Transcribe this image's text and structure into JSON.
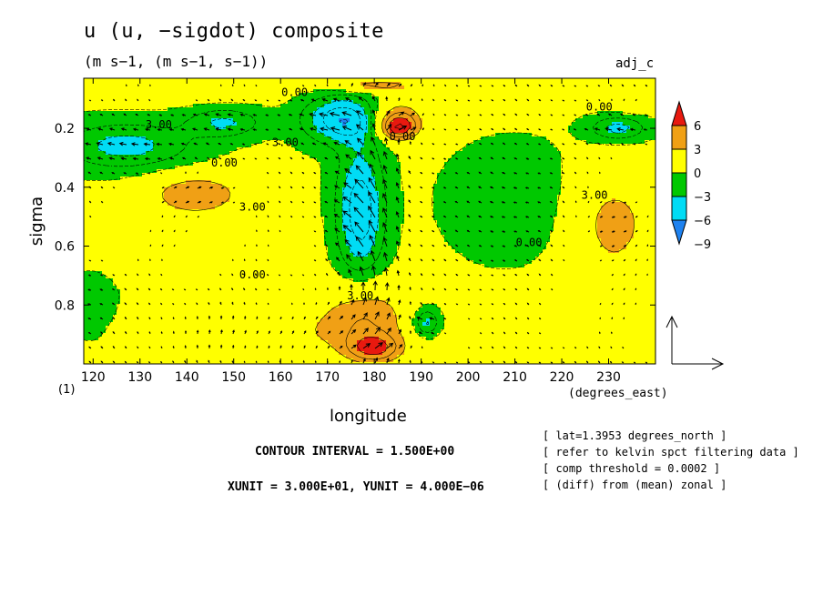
{
  "figure": {
    "title": "u (u, −sigdot) composite",
    "subtitle": "(m s−1, (m s−1, s−1))",
    "variant_label": "adj_c",
    "contour_interval": "CONTOUR INTERVAL = 1.500E+00",
    "vector_units": "XUNIT = 3.000E+01, YUNIT = 4.000E−06",
    "notes": [
      "[ lat=1.3953 degrees_north ]",
      "[ refer to kelvin spct filtering data ]",
      "[ comp threshold = 0.0002 ]",
      "[ (diff) from (mean) zonal ]"
    ],
    "colors": {
      "red": "#e8190f",
      "orange": "#f0a015",
      "yellow": "#ffff00",
      "green": "#00c800",
      "cyan": "#00dcf5",
      "blue": "#1e82f0"
    }
  },
  "chart_data": {
    "type": "heatmap",
    "title": "u (u, −sigdot) composite",
    "xlabel": "longitude",
    "xunits": "(degrees_east)",
    "ylabel": "sigma",
    "y_extra_label": "(1)",
    "xlim": [
      118,
      240
    ],
    "ylim": [
      0.03,
      1.0
    ],
    "y_inverted": true,
    "x_ticks": [
      120,
      130,
      140,
      150,
      160,
      170,
      180,
      190,
      200,
      210,
      220,
      230
    ],
    "y_ticks": [
      0.2,
      0.4,
      0.6,
      0.8
    ],
    "colorbar": {
      "tick_labels": [
        "6",
        "3",
        "0",
        "−3",
        "−6",
        "−9"
      ],
      "bin_edges": [
        -9,
        -6,
        -3,
        0,
        3,
        6
      ],
      "colors": [
        "#1e82f0",
        "#00dcf5",
        "#00c800",
        "#ffff00",
        "#f0a015",
        "#e8190f"
      ]
    },
    "contour_labels": [
      {
        "text": "0.00",
        "lon": 163,
        "sigma": 0.09
      },
      {
        "text": "3.00",
        "lon": 134,
        "sigma": 0.2
      },
      {
        "text": "3.00",
        "lon": 161,
        "sigma": 0.26
      },
      {
        "text": "0.00",
        "lon": 148,
        "sigma": 0.33
      },
      {
        "text": "3.00",
        "lon": 154,
        "sigma": 0.48
      },
      {
        "text": "0.00",
        "lon": 186,
        "sigma": 0.24
      },
      {
        "text": "0.00",
        "lon": 228,
        "sigma": 0.14
      },
      {
        "text": "3.00",
        "lon": 227,
        "sigma": 0.44
      },
      {
        "text": "0.00",
        "lon": 213,
        "sigma": 0.6
      },
      {
        "text": "0.00",
        "lon": 154,
        "sigma": 0.71
      },
      {
        "text": "3.00",
        "lon": 177,
        "sigma": 0.78
      }
    ],
    "features": [
      {
        "name": "upper positive lobe",
        "value": 3,
        "lon": [
          170,
          192
        ],
        "sigma": [
          0.04,
          0.07
        ]
      },
      {
        "name": "tropopause strong westerly core",
        "value": 6,
        "lon": [
          181,
          189
        ],
        "sigma": [
          0.17,
          0.23
        ]
      },
      {
        "name": "upper easterly anomaly",
        "value": -6,
        "lon": [
          162,
          183
        ],
        "sigma": [
          0.1,
          0.3
        ]
      },
      {
        "name": "western upper easterly",
        "value": -6,
        "lon": [
          118,
          145
        ],
        "sigma": [
          0.15,
          0.35
        ]
      },
      {
        "name": "deep easterly column",
        "value": -6,
        "lon": [
          171,
          186
        ],
        "sigma": [
          0.3,
          0.74
        ]
      },
      {
        "name": "mid-level westerly west",
        "value": 3,
        "lon": [
          132,
          153
        ],
        "sigma": [
          0.35,
          0.5
        ]
      },
      {
        "name": "mid-level westerly east",
        "value": 3,
        "lon": [
          222,
          240
        ],
        "sigma": [
          0.35,
          0.72
        ]
      },
      {
        "name": "surface westerly core",
        "value": 6,
        "lon": [
          176,
          184
        ],
        "sigma": [
          0.9,
          0.97
        ]
      }
    ],
    "vectors": "wind field (u, −sigdot) arrows; strong upward motion near 172–186 longitude",
    "reference_vector": {
      "xunit": 30,
      "yunit": 4e-06
    }
  }
}
